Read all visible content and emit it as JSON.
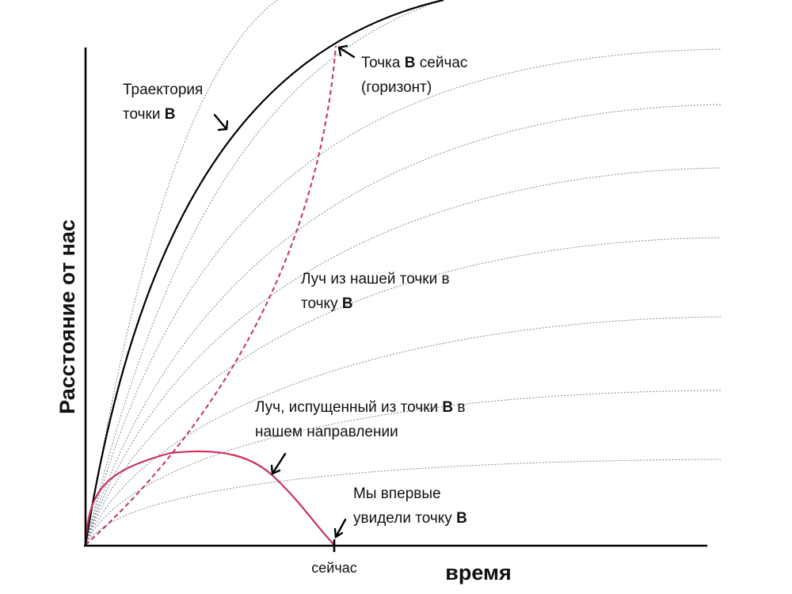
{
  "axes": {
    "x_title": "время",
    "y_title": "Расстояние от нас",
    "x_tick": "сейчас"
  },
  "labels": {
    "trajectory_line1": "Траектория",
    "trajectory_line2_a": "точки ",
    "trajectory_line2_b": "B",
    "point_now_line1_a": "Точка ",
    "point_now_line1_b": "B",
    "point_now_line1_c": " сейчас",
    "point_now_line2": "(горизонт)",
    "ray_to_b_line1": "Луч из нашей точки в",
    "ray_to_b_line2_a": "точку ",
    "ray_to_b_line2_b": "B",
    "ray_from_b_line1_a": "Луч, испущенный из точки ",
    "ray_from_b_line1_b": "B",
    "ray_from_b_line1_c": " в",
    "ray_from_b_line2": "нашем направлении",
    "first_seen_line1": "Мы впервые",
    "first_seen_line2_a": "увидели точку ",
    "first_seen_line2_b": "B"
  },
  "colors": {
    "axis": "#000000",
    "trajectory": "#000000",
    "guide_lines": "#7a8a9a",
    "ray": "#c8325a",
    "ray_dashed": "#c0306e"
  }
}
